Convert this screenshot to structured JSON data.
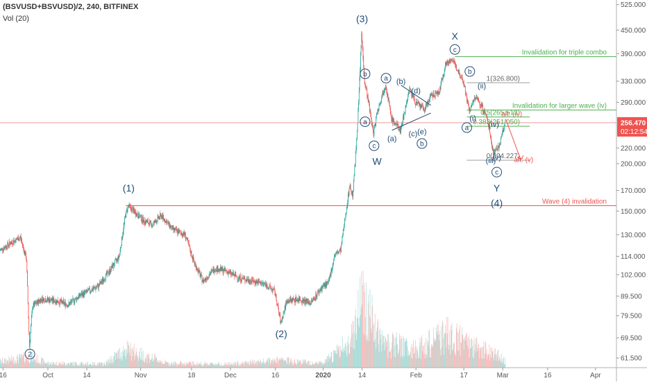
{
  "header": {
    "symbol": "(BSVUSD+BSVUSD)/2, 240, BITFINEX",
    "volume_label": "Vol (20)"
  },
  "colors": {
    "up": "#26a69a",
    "down": "#ef5350",
    "wave_label": "#1e4b73",
    "green_line": "#4caf50",
    "red_line": "#ef5350",
    "fib_line": "#9e9e9e",
    "price_tag": "#ef5350"
  },
  "chart_data": {
    "type": "candlestick",
    "y_scale": "log",
    "ylim": [
      58,
      540
    ],
    "xlim": [
      "2019-09-15",
      "2020-04-08"
    ],
    "y_ticks": [
      "525.000",
      "450.000",
      "390.000",
      "330.000",
      "290.000",
      "256.470",
      "220.000",
      "200.000",
      "170.000",
      "150.000",
      "130.000",
      "114.000",
      "102.000",
      "89.500",
      "79.500",
      "69.500",
      "61.500"
    ],
    "y_tick_values": [
      525,
      450,
      390,
      330,
      290,
      256.47,
      220,
      200,
      170,
      150,
      130,
      114,
      102,
      89.5,
      79.5,
      69.5,
      61.5
    ],
    "current_price": "256.470",
    "countdown": "02:12:54",
    "x_ticks": [
      {
        "label": "16",
        "date": "2019-09-16"
      },
      {
        "label": "Oct",
        "date": "2019-10-01"
      },
      {
        "label": "14",
        "date": "2019-10-14"
      },
      {
        "label": "Nov",
        "date": "2019-11-01"
      },
      {
        "label": "18",
        "date": "2019-11-18"
      },
      {
        "label": "Dec",
        "date": "2019-12-01"
      },
      {
        "label": "16",
        "date": "2019-12-16"
      },
      {
        "label": "2020",
        "date": "2020-01-01"
      },
      {
        "label": "14",
        "date": "2020-01-14"
      },
      {
        "label": "Feb",
        "date": "2020-02-01"
      },
      {
        "label": "17",
        "date": "2020-02-17"
      },
      {
        "label": "Mar",
        "date": "2020-03-01"
      },
      {
        "label": "16",
        "date": "2020-03-16"
      },
      {
        "label": "Apr",
        "date": "2020-04-01"
      }
    ],
    "price_path": [
      [
        "2019-09-15",
        118
      ],
      [
        "2019-09-19",
        124
      ],
      [
        "2019-09-22",
        128
      ],
      [
        "2019-09-24",
        112
      ],
      [
        "2019-09-25",
        66
      ],
      [
        "2019-09-26",
        84
      ],
      [
        "2019-09-29",
        88
      ],
      [
        "2019-10-04",
        87
      ],
      [
        "2019-10-08",
        85
      ],
      [
        "2019-10-12",
        90
      ],
      [
        "2019-10-18",
        95
      ],
      [
        "2019-10-22",
        105
      ],
      [
        "2019-10-25",
        114
      ],
      [
        "2019-10-27",
        145
      ],
      [
        "2019-10-28",
        155
      ],
      [
        "2019-11-02",
        142
      ],
      [
        "2019-11-05",
        138
      ],
      [
        "2019-11-08",
        146
      ],
      [
        "2019-11-12",
        134
      ],
      [
        "2019-11-16",
        130
      ],
      [
        "2019-11-19",
        110
      ],
      [
        "2019-11-22",
        98
      ],
      [
        "2019-11-26",
        106
      ],
      [
        "2019-11-30",
        104
      ],
      [
        "2019-12-04",
        100
      ],
      [
        "2019-12-09",
        98
      ],
      [
        "2019-12-13",
        96
      ],
      [
        "2019-12-16",
        92
      ],
      [
        "2019-12-18",
        76
      ],
      [
        "2019-12-20",
        87
      ],
      [
        "2019-12-24",
        88
      ],
      [
        "2019-12-28",
        86
      ],
      [
        "2020-01-01",
        95
      ],
      [
        "2020-01-03",
        97
      ],
      [
        "2020-01-05",
        115
      ],
      [
        "2020-01-07",
        118
      ],
      [
        "2020-01-08",
        135
      ],
      [
        "2020-01-10",
        175
      ],
      [
        "2020-01-11",
        165
      ],
      [
        "2020-01-12",
        210
      ],
      [
        "2020-01-13",
        290
      ],
      [
        "2020-01-14",
        440
      ],
      [
        "2020-01-15",
        330
      ],
      [
        "2020-01-16",
        300
      ],
      [
        "2020-01-18",
        240
      ],
      [
        "2020-01-19",
        270
      ],
      [
        "2020-01-22",
        325
      ],
      [
        "2020-01-24",
        262
      ],
      [
        "2020-01-27",
        245
      ],
      [
        "2020-01-30",
        315
      ],
      [
        "2020-02-01",
        290
      ],
      [
        "2020-02-04",
        278
      ],
      [
        "2020-02-06",
        300
      ],
      [
        "2020-02-09",
        310
      ],
      [
        "2020-02-11",
        365
      ],
      [
        "2020-02-13",
        378
      ],
      [
        "2020-02-15",
        355
      ],
      [
        "2020-02-17",
        330
      ],
      [
        "2020-02-19",
        275
      ],
      [
        "2020-02-21",
        300
      ],
      [
        "2020-02-23",
        285
      ],
      [
        "2020-02-25",
        262
      ],
      [
        "2020-02-27",
        215
      ],
      [
        "2020-02-29",
        222
      ],
      [
        "2020-03-01",
        240
      ],
      [
        "2020-03-02",
        256.47
      ]
    ],
    "volume_path": [
      [
        "2019-09-15",
        0.08
      ],
      [
        "2019-09-25",
        0.15
      ],
      [
        "2019-10-01",
        0.06
      ],
      [
        "2019-10-20",
        0.05
      ],
      [
        "2019-10-27",
        0.25
      ],
      [
        "2019-11-10",
        0.06
      ],
      [
        "2019-12-01",
        0.05
      ],
      [
        "2019-12-18",
        0.1
      ],
      [
        "2020-01-01",
        0.06
      ],
      [
        "2020-01-10",
        0.35
      ],
      [
        "2020-01-14",
        1.0
      ],
      [
        "2020-01-20",
        0.35
      ],
      [
        "2020-02-01",
        0.25
      ],
      [
        "2020-02-12",
        0.45
      ],
      [
        "2020-02-20",
        0.28
      ],
      [
        "2020-02-27",
        0.2
      ],
      [
        "2020-03-02",
        0.1
      ]
    ],
    "hlines": [
      {
        "name": "invalidation-triple-combo",
        "label": "Invalidation for triple combo",
        "price": 383,
        "from": "2020-02-14",
        "to": "2020-04-08",
        "color": "#4caf50",
        "label_color": "#4caf50"
      },
      {
        "name": "fib-1",
        "label": "1(326.800)",
        "price": 326.8,
        "from": "2020-02-18",
        "to": "2020-03-10",
        "color": "#9e9e9e",
        "label_color": "#666666"
      },
      {
        "name": "invalidation-larger-wave",
        "label": "Invalidation for larger wave (iv)",
        "price": 277,
        "from": "2020-02-18",
        "to": "2020-04-08",
        "color": "#4caf50",
        "label_color": "#4caf50"
      },
      {
        "name": "fib-0.5",
        "label": "0.5(265.513)",
        "price": 265.513,
        "from": "2020-02-18",
        "to": "2020-03-10",
        "color": "#4caf50",
        "label_color": "#4caf50"
      },
      {
        "name": "current-price-line",
        "label": "",
        "price": 256.47,
        "from": "2019-09-15",
        "to": "2020-04-08",
        "color": "#ef9a9a",
        "label_color": "#ef5350"
      },
      {
        "name": "fib-0.382",
        "label": "0.382(251.050)",
        "price": 251.05,
        "from": "2020-02-18",
        "to": "2020-03-10",
        "color": "#4caf50",
        "label_color": "#4caf50"
      },
      {
        "name": "fib-0",
        "label": "0(204.227)",
        "price": 204.227,
        "from": "2020-02-18",
        "to": "2020-03-10",
        "color": "#9e9e9e",
        "label_color": "#666666"
      },
      {
        "name": "wave-4-invalidation",
        "label": "Wave (4) invalidation",
        "price": 155,
        "from": "2019-10-27",
        "to": "2020-04-08",
        "color": "#ef5350",
        "label_color": "#ef5350"
      }
    ],
    "wave_labels": [
      {
        "text": "2",
        "date": "2019-09-25",
        "price": 63,
        "circled": true
      },
      {
        "text": "(1)",
        "date": "2019-10-28",
        "price": 172,
        "circled": false
      },
      {
        "text": "(2)",
        "date": "2019-12-18",
        "price": 71,
        "circled": false
      },
      {
        "text": "(3)",
        "date": "2020-01-14",
        "price": 480,
        "circled": false
      },
      {
        "text": "a",
        "date": "2020-01-15",
        "price": 258,
        "circled": true
      },
      {
        "text": "b",
        "date": "2020-01-15",
        "price": 345,
        "circled": true
      },
      {
        "text": "c",
        "date": "2020-01-18",
        "price": 223,
        "circled": true
      },
      {
        "text": "W",
        "date": "2020-01-19",
        "price": 202,
        "circled": false
      },
      {
        "text": "a",
        "date": "2020-01-22",
        "price": 336,
        "circled": true
      },
      {
        "text": "(a)",
        "date": "2020-01-24",
        "price": 233,
        "circled": false
      },
      {
        "text": "(b)",
        "date": "2020-01-27",
        "price": 330,
        "circled": false
      },
      {
        "text": "(c)",
        "date": "2020-01-31",
        "price": 240,
        "circled": false
      },
      {
        "text": "(d)",
        "date": "2020-02-01",
        "price": 312,
        "circled": false
      },
      {
        "text": "(e)",
        "date": "2020-02-03",
        "price": 243,
        "circled": false
      },
      {
        "text": "b",
        "date": "2020-02-03",
        "price": 226,
        "circled": true
      },
      {
        "text": "X",
        "date": "2020-02-14",
        "price": 432,
        "circled": false
      },
      {
        "text": "c",
        "date": "2020-02-14",
        "price": 400,
        "circled": true
      },
      {
        "text": "b",
        "date": "2020-02-19",
        "price": 350,
        "circled": true
      },
      {
        "text": "(ii)",
        "date": "2020-02-23",
        "price": 321,
        "circled": false
      },
      {
        "text": "(i)",
        "date": "2020-02-20",
        "price": 264,
        "circled": false
      },
      {
        "text": "a",
        "date": "2020-02-18",
        "price": 249,
        "circled": true
      },
      {
        "text": "(iv)",
        "date": "2020-02-27",
        "price": 254,
        "circled": false
      },
      {
        "text": "(iii)",
        "date": "2020-02-26",
        "price": 204,
        "circled": false
      },
      {
        "text": "(v)",
        "date": "2020-02-28",
        "price": 208,
        "circled": false
      },
      {
        "text": "c",
        "date": "2020-02-28",
        "price": 190,
        "circled": true
      },
      {
        "text": "Y",
        "date": "2020-02-28",
        "price": 172,
        "circled": false
      },
      {
        "text": "(4)",
        "date": "2020-02-28",
        "price": 157,
        "circled": false
      }
    ],
    "alt_labels": [
      {
        "text": "alt: (iv)",
        "date": "2020-03-04",
        "price": 267
      },
      {
        "text": "alt: (v)",
        "date": "2020-03-08",
        "price": 202
      }
    ],
    "triangle": [
      [
        [
          "2020-01-24",
          245
        ],
        [
          "2020-02-06",
          272
        ]
      ],
      [
        [
          "2020-01-27",
          322
        ],
        [
          "2020-02-06",
          285
        ]
      ]
    ],
    "projection": [
      [
        "2020-03-02",
        262
      ],
      [
        "2020-03-07",
        205
      ]
    ]
  }
}
